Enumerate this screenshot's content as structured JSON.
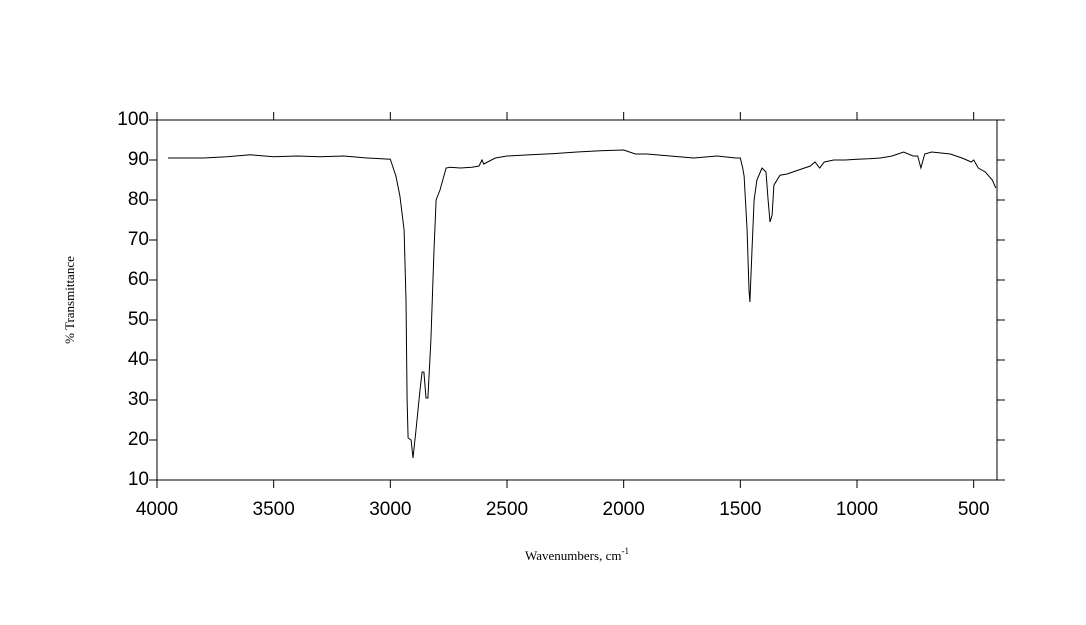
{
  "chart_data": {
    "type": "line",
    "x_label": "Wavenumbers, cm",
    "x_label_sup": "-1",
    "y_label": "% Transmittance",
    "xlim": [
      4000,
      400
    ],
    "ylim": [
      10,
      100
    ],
    "xticks": [
      4000,
      3500,
      3000,
      2500,
      2000,
      1500,
      1000,
      500
    ],
    "yticks": [
      10,
      20,
      30,
      40,
      50,
      60,
      70,
      80,
      90,
      100
    ],
    "color": "#000000",
    "x": [
      3953,
      3900,
      3800,
      3700,
      3600,
      3500,
      3400,
      3300,
      3200,
      3100,
      3000,
      2976,
      2959,
      2941,
      2933,
      2928,
      2924,
      2911,
      2903,
      2890,
      2873,
      2864,
      2856,
      2847,
      2839,
      2826,
      2813,
      2804,
      2787,
      2761,
      2744,
      2700,
      2650,
      2620,
      2607,
      2600,
      2550,
      2500,
      2400,
      2300,
      2200,
      2100,
      2000,
      1950,
      1900,
      1800,
      1700,
      1600,
      1520,
      1500,
      1490,
      1484,
      1471,
      1463,
      1459,
      1450,
      1441,
      1429,
      1407,
      1390,
      1381,
      1373,
      1364,
      1356,
      1330,
      1300,
      1250,
      1200,
      1180,
      1160,
      1140,
      1100,
      1050,
      1000,
      950,
      900,
      850,
      800,
      760,
      740,
      726,
      710,
      680,
      650,
      600,
      550,
      510,
      500,
      480,
      450,
      420,
      405
    ],
    "values": [
      90.5,
      90.5,
      90.5,
      90.8,
      91.3,
      90.8,
      91,
      90.8,
      91,
      90.5,
      90.2,
      86,
      81,
      72.5,
      55,
      30,
      20.5,
      20,
      15.5,
      22.5,
      32.5,
      37,
      37,
      30.5,
      30.5,
      45,
      67.5,
      80,
      82.5,
      88,
      88.2,
      88,
      88.2,
      88.5,
      90,
      89,
      90.5,
      91,
      91.3,
      91.6,
      92,
      92.3,
      92.5,
      91.5,
      91.5,
      91,
      90.5,
      91,
      90.5,
      90.5,
      88,
      86,
      72.5,
      57.5,
      54.5,
      67.5,
      80,
      85,
      88,
      87,
      80,
      74.5,
      76.2,
      83.7,
      86.2,
      86.5,
      87.5,
      88.5,
      89.5,
      88,
      89.5,
      90,
      90,
      90.2,
      90.3,
      90.5,
      91,
      92,
      91,
      91,
      88,
      91.5,
      92,
      91.8,
      91.5,
      90.5,
      89.5,
      90,
      88,
      87,
      85,
      83
    ]
  }
}
